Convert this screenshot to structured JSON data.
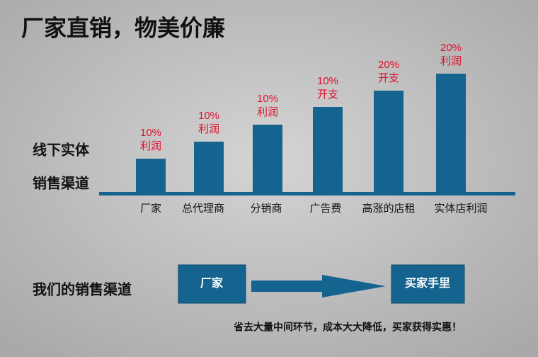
{
  "title": "厂家直销，物美价廉",
  "chart": {
    "side_labels": [
      "线下实体",
      "销售渠道"
    ],
    "items": [
      {
        "category": "厂家",
        "percent": "10%",
        "label": "利润"
      },
      {
        "category": "总代理商",
        "percent": "10%",
        "label": "利润"
      },
      {
        "category": "分销商",
        "percent": "10%",
        "label": "利润"
      },
      {
        "category": "广告费",
        "percent": "10%",
        "label": "开支"
      },
      {
        "category": "高涨的店租",
        "percent": "20%",
        "label": "开支"
      },
      {
        "category": "实体店利润",
        "percent": "20%",
        "label": "利润"
      }
    ]
  },
  "channel": {
    "label": "我们的销售渠道",
    "from": "厂家",
    "to": "买家手里"
  },
  "footer": "省去大量中间环节，成本大大降低，买家获得实惠！"
}
